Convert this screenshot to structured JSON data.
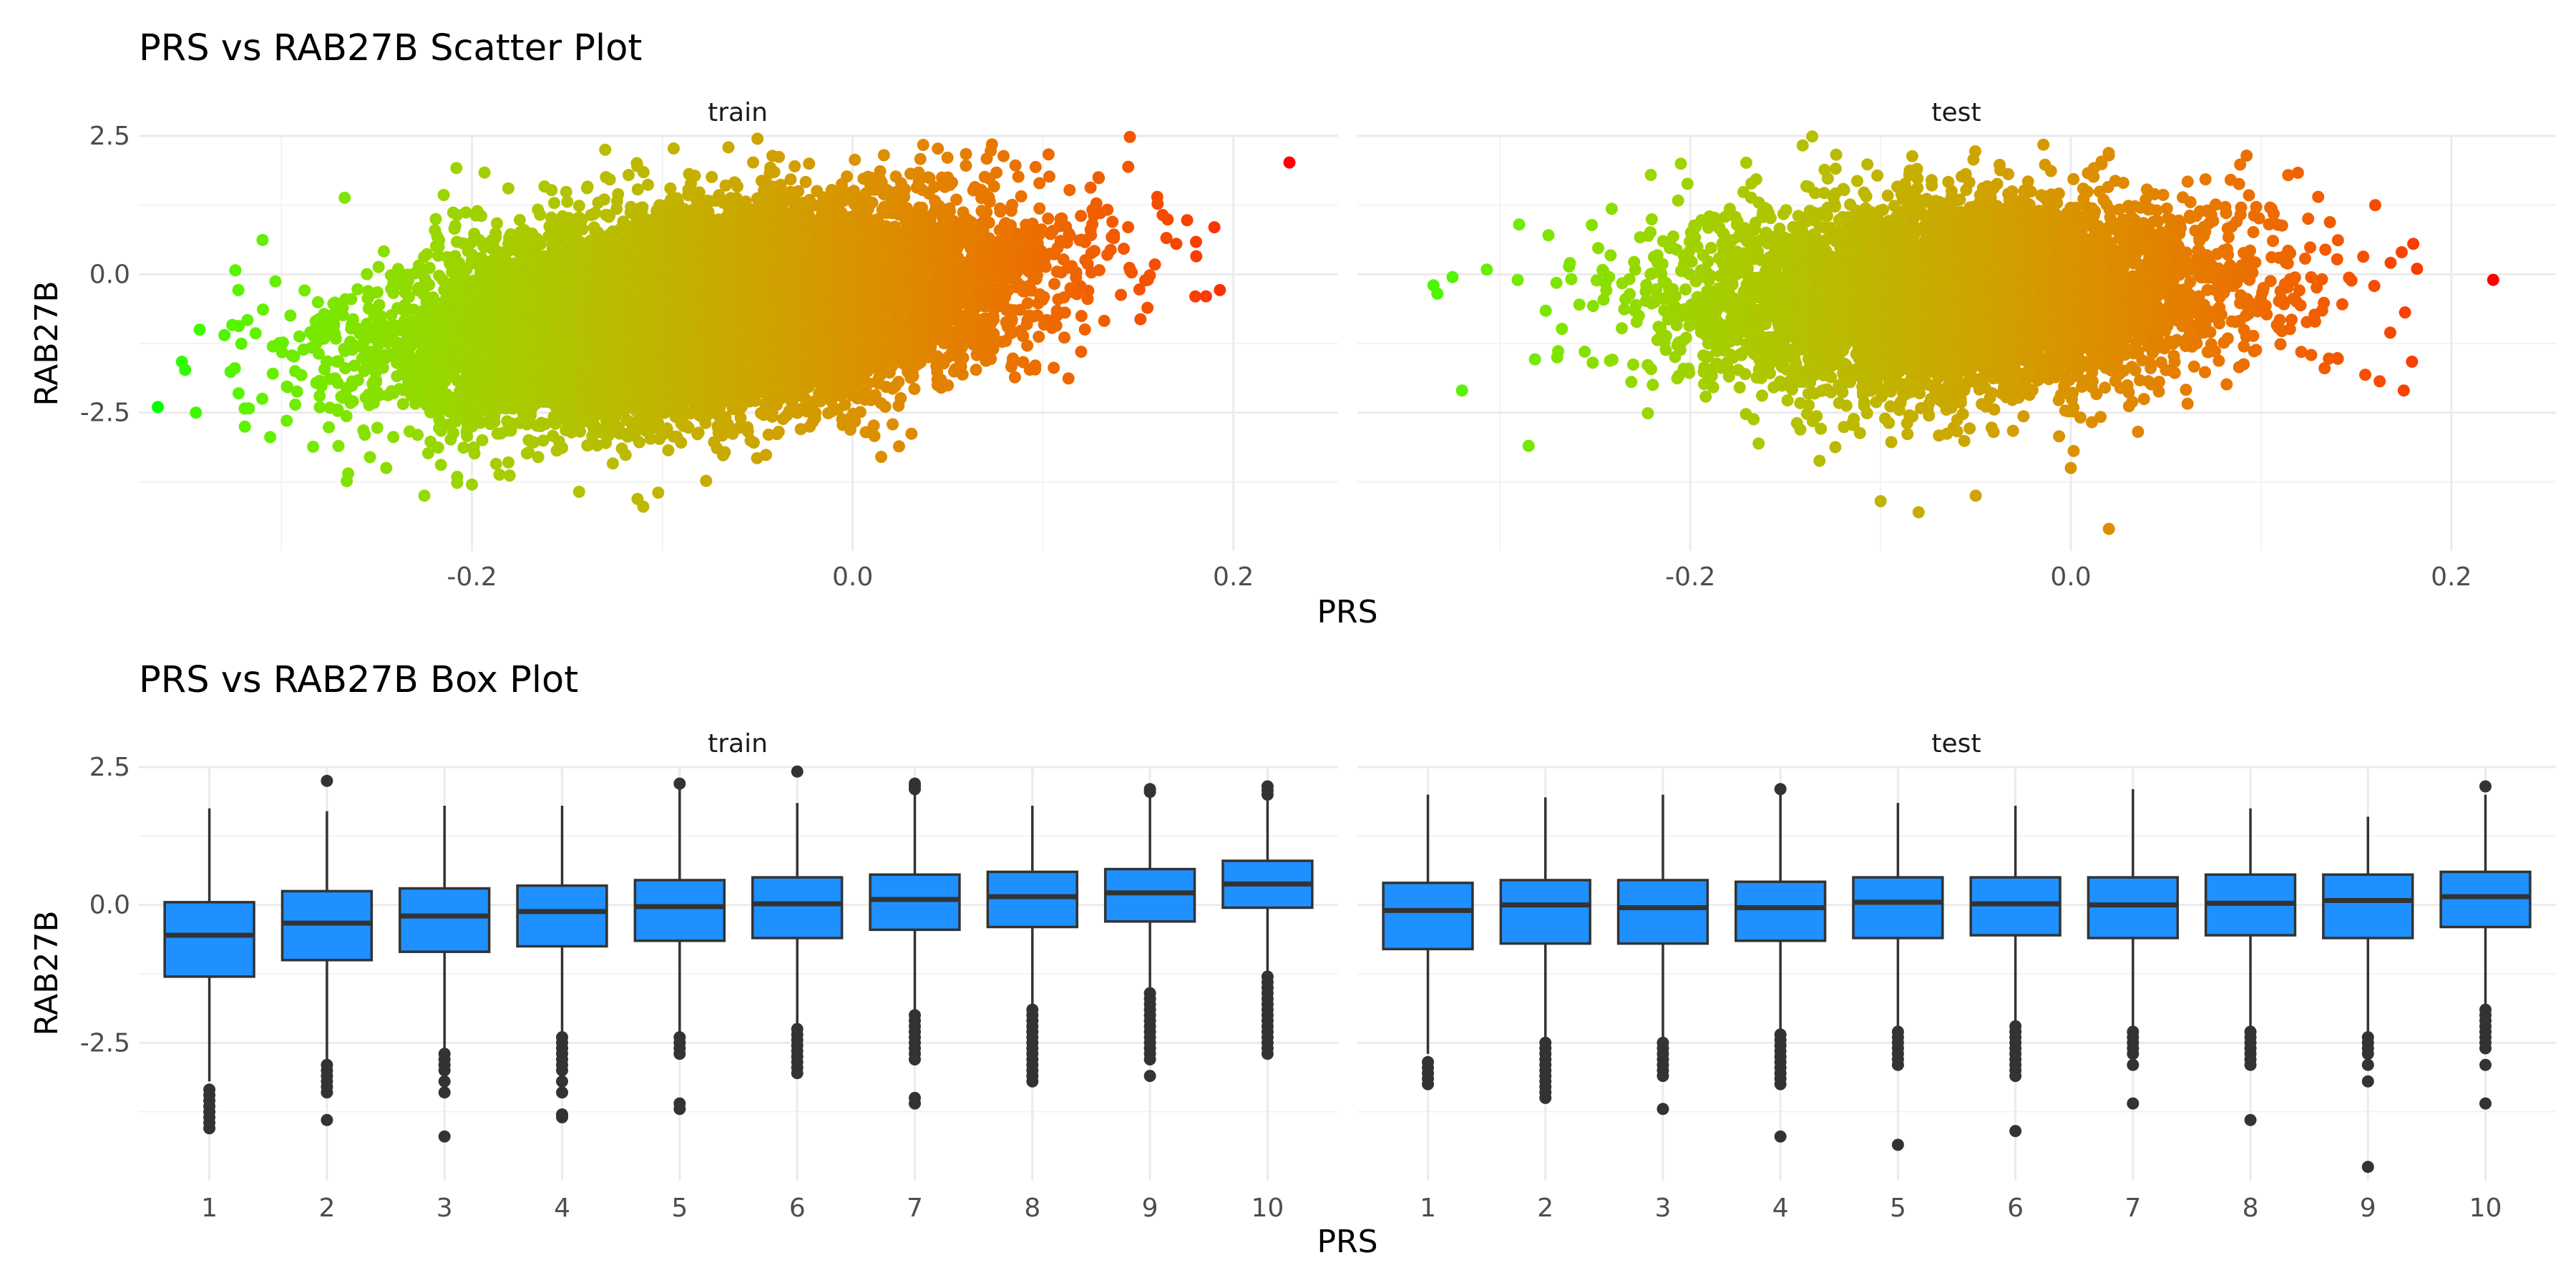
{
  "chart_data": [
    {
      "type": "scatter",
      "title": "PRS vs RAB27B Scatter Plot",
      "xlabel": "PRS",
      "ylabel": "RAB27B",
      "facets": [
        "train",
        "test"
      ],
      "xlim": [
        -0.375,
        0.255
      ],
      "ylim": [
        -5.0,
        2.5
      ],
      "x_ticks": [
        -0.2,
        0.0,
        0.2
      ],
      "x_tick_labels": [
        "-0.2",
        "0.0",
        "0.2"
      ],
      "y_ticks": [
        2.5,
        0.0,
        -2.5
      ],
      "y_tick_labels": [
        "2.5",
        "0.0",
        "-2.5"
      ],
      "color_scale": {
        "low": "#00ff00",
        "high": "#ff0000",
        "mapped_to": "PRS"
      },
      "panels": [
        {
          "facet": "train",
          "x_center": -0.08,
          "x_sd": 0.075,
          "y_center": -0.65,
          "y_sd": 0.85,
          "slope": 4.5,
          "n_approx": 12000,
          "extreme_points": [
            {
              "x": -0.365,
              "y": -2.4
            },
            {
              "x": -0.345,
              "y": -2.5
            },
            {
              "x": -0.343,
              "y": -1.0
            },
            {
              "x": -0.33,
              "y": -1.1
            },
            {
              "x": -0.31,
              "y": 0.62
            },
            {
              "x": -0.28,
              "y": -2.2
            },
            {
              "x": -0.265,
              "y": -3.6
            },
            {
              "x": -0.245,
              "y": -3.5
            },
            {
              "x": -0.225,
              "y": -4.0
            },
            {
              "x": -0.2,
              "y": -3.8
            },
            {
              "x": -0.13,
              "y": 2.25
            },
            {
              "x": -0.11,
              "y": -4.2
            },
            {
              "x": -0.05,
              "y": 2.45
            },
            {
              "x": 0.015,
              "y": -3.3
            },
            {
              "x": 0.05,
              "y": 1.75
            },
            {
              "x": 0.12,
              "y": -1.4
            },
            {
              "x": 0.16,
              "y": 1.4
            },
            {
              "x": 0.18,
              "y": -0.4
            },
            {
              "x": 0.19,
              "y": 0.85
            },
            {
              "x": 0.17,
              "y": 0.55
            },
            {
              "x": 0.155,
              "y": -0.1
            }
          ]
        },
        {
          "facet": "test",
          "x_center": -0.06,
          "x_sd": 0.07,
          "y_center": -0.4,
          "y_sd": 0.85,
          "slope": 0.8,
          "n_approx": 5500,
          "extreme_points": [
            {
              "x": -0.335,
              "y": -0.2
            },
            {
              "x": -0.333,
              "y": -0.35
            },
            {
              "x": -0.325,
              "y": -0.05
            },
            {
              "x": -0.32,
              "y": -2.1
            },
            {
              "x": -0.285,
              "y": -3.1
            },
            {
              "x": -0.29,
              "y": 0.9
            },
            {
              "x": -0.27,
              "y": -1.5
            },
            {
              "x": -0.205,
              "y": 2.0
            },
            {
              "x": -0.1,
              "y": -4.1
            },
            {
              "x": -0.08,
              "y": -4.3
            },
            {
              "x": -0.05,
              "y": -4.0
            },
            {
              "x": 0.0,
              "y": -3.5
            },
            {
              "x": 0.02,
              "y": -4.6
            },
            {
              "x": 0.02,
              "y": 2.15
            },
            {
              "x": 0.13,
              "y": 1.4
            },
            {
              "x": 0.16,
              "y": 1.25
            },
            {
              "x": 0.175,
              "y": -2.1
            },
            {
              "x": 0.18,
              "y": 0.55
            },
            {
              "x": 0.182,
              "y": 0.1
            },
            {
              "x": 0.222,
              "y": -0.1
            }
          ]
        }
      ]
    },
    {
      "type": "box",
      "title": "PRS vs RAB27B Box Plot",
      "xlabel": "PRS",
      "ylabel": "RAB27B",
      "facets": [
        "train",
        "test"
      ],
      "categories": [
        "1",
        "2",
        "3",
        "4",
        "5",
        "6",
        "7",
        "8",
        "9",
        "10"
      ],
      "ylim": [
        -5.0,
        2.5
      ],
      "y_ticks": [
        2.5,
        0.0,
        -2.5
      ],
      "y_tick_labels": [
        "2.5",
        "0.0",
        "-2.5"
      ],
      "fill": "#1e90ff",
      "panels": [
        {
          "facet": "train",
          "boxes": [
            {
              "category": "1",
              "whisker_low": -3.2,
              "q1": -1.3,
              "median": -0.55,
              "q3": 0.05,
              "whisker_high": 1.75,
              "outliers": [
                -3.35,
                -3.45,
                -3.55,
                -3.65,
                -3.75,
                -3.85,
                -3.95,
                -4.05
              ]
            },
            {
              "category": "2",
              "whisker_low": -2.8,
              "q1": -1.0,
              "median": -0.33,
              "q3": 0.25,
              "whisker_high": 1.7,
              "outliers": [
                2.25,
                -2.9,
                -3.0,
                -3.1,
                -3.2,
                -3.3,
                -3.4,
                -3.9
              ]
            },
            {
              "category": "3",
              "whisker_low": -2.65,
              "q1": -0.85,
              "median": -0.2,
              "q3": 0.3,
              "whisker_high": 1.8,
              "outliers": [
                -2.7,
                -2.8,
                -2.9,
                -3.0,
                -3.2,
                -3.4,
                -4.2
              ]
            },
            {
              "category": "4",
              "whisker_low": -2.3,
              "q1": -0.75,
              "median": -0.12,
              "q3": 0.35,
              "whisker_high": 1.8,
              "outliers": [
                -2.4,
                -2.5,
                -2.6,
                -2.7,
                -2.8,
                -2.9,
                -3.0,
                -3.2,
                -3.4,
                -3.8,
                -3.85
              ]
            },
            {
              "category": "5",
              "whisker_low": -2.3,
              "q1": -0.65,
              "median": -0.03,
              "q3": 0.45,
              "whisker_high": 2.1,
              "outliers": [
                2.2,
                -2.4,
                -2.5,
                -2.6,
                -2.7,
                -3.6,
                -3.7
              ]
            },
            {
              "category": "6",
              "whisker_low": -2.15,
              "q1": -0.6,
              "median": 0.02,
              "q3": 0.5,
              "whisker_high": 1.85,
              "outliers": [
                2.42,
                -2.25,
                -2.35,
                -2.45,
                -2.55,
                -2.65,
                -2.75,
                -2.85,
                -2.95,
                -3.05
              ]
            },
            {
              "category": "7",
              "whisker_low": -1.9,
              "q1": -0.45,
              "median": 0.1,
              "q3": 0.55,
              "whisker_high": 2.05,
              "outliers": [
                2.1,
                2.15,
                2.2,
                -2.0,
                -2.1,
                -2.2,
                -2.3,
                -2.4,
                -2.5,
                -2.6,
                -2.7,
                -2.8,
                -3.5,
                -3.6
              ]
            },
            {
              "category": "8",
              "whisker_low": -1.8,
              "q1": -0.4,
              "median": 0.15,
              "q3": 0.6,
              "whisker_high": 1.8,
              "outliers": [
                -1.9,
                -2.0,
                -2.1,
                -2.2,
                -2.3,
                -2.4,
                -2.5,
                -2.6,
                -2.7,
                -2.8,
                -2.9,
                -3.0,
                -3.1,
                -3.2
              ]
            },
            {
              "category": "9",
              "whisker_low": -1.5,
              "q1": -0.3,
              "median": 0.22,
              "q3": 0.65,
              "whisker_high": 1.95,
              "outliers": [
                2.05,
                2.1,
                -1.6,
                -1.7,
                -1.8,
                -1.9,
                -2.0,
                -2.1,
                -2.2,
                -2.3,
                -2.4,
                -2.5,
                -2.6,
                -2.7,
                -2.8,
                -3.1
              ]
            },
            {
              "category": "10",
              "whisker_low": -1.2,
              "q1": -0.05,
              "median": 0.38,
              "q3": 0.8,
              "whisker_high": 1.95,
              "outliers": [
                2.0,
                2.08,
                2.15,
                -1.3,
                -1.4,
                -1.5,
                -1.6,
                -1.7,
                -1.8,
                -1.9,
                -2.0,
                -2.1,
                -2.2,
                -2.3,
                -2.4,
                -2.5,
                -2.6,
                -2.7
              ]
            }
          ]
        },
        {
          "facet": "test",
          "boxes": [
            {
              "category": "1",
              "whisker_low": -2.7,
              "q1": -0.8,
              "median": -0.1,
              "q3": 0.4,
              "whisker_high": 2.0,
              "outliers": [
                -2.85,
                -2.95,
                -3.05,
                -3.15,
                -3.25
              ]
            },
            {
              "category": "2",
              "whisker_low": -2.4,
              "q1": -0.7,
              "median": 0.0,
              "q3": 0.45,
              "whisker_high": 1.95,
              "outliers": [
                -2.5,
                -2.6,
                -2.7,
                -2.8,
                -2.9,
                -3.0,
                -3.1,
                -3.2,
                -3.3,
                -3.4,
                -3.5
              ]
            },
            {
              "category": "3",
              "whisker_low": -2.4,
              "q1": -0.7,
              "median": -0.05,
              "q3": 0.45,
              "whisker_high": 2.0,
              "outliers": [
                -2.5,
                -2.6,
                -2.7,
                -2.8,
                -2.9,
                -3.0,
                -3.1,
                -3.7
              ]
            },
            {
              "category": "4",
              "whisker_low": -2.25,
              "q1": -0.65,
              "median": -0.05,
              "q3": 0.42,
              "whisker_high": 2.0,
              "outliers": [
                2.1,
                -2.35,
                -2.45,
                -2.55,
                -2.65,
                -2.75,
                -2.85,
                -2.95,
                -3.05,
                -3.15,
                -3.25,
                -4.2
              ]
            },
            {
              "category": "5",
              "whisker_low": -2.2,
              "q1": -0.6,
              "median": 0.05,
              "q3": 0.5,
              "whisker_high": 1.85,
              "outliers": [
                -2.3,
                -2.4,
                -2.5,
                -2.6,
                -2.7,
                -2.8,
                -2.9,
                -4.35
              ]
            },
            {
              "category": "6",
              "whisker_low": -2.1,
              "q1": -0.55,
              "median": 0.02,
              "q3": 0.5,
              "whisker_high": 1.8,
              "outliers": [
                -2.2,
                -2.3,
                -2.4,
                -2.5,
                -2.6,
                -2.7,
                -2.8,
                -2.9,
                -3.0,
                -3.1,
                -4.1
              ]
            },
            {
              "category": "7",
              "whisker_low": -2.2,
              "q1": -0.6,
              "median": 0.0,
              "q3": 0.5,
              "whisker_high": 2.1,
              "outliers": [
                -2.3,
                -2.4,
                -2.5,
                -2.6,
                -2.7,
                -2.9,
                -3.6
              ]
            },
            {
              "category": "8",
              "whisker_low": -2.2,
              "q1": -0.55,
              "median": 0.03,
              "q3": 0.55,
              "whisker_high": 1.75,
              "outliers": [
                -2.3,
                -2.4,
                -2.5,
                -2.6,
                -2.7,
                -2.8,
                -2.9,
                -3.9
              ]
            },
            {
              "category": "9",
              "whisker_low": -2.3,
              "q1": -0.6,
              "median": 0.08,
              "q3": 0.55,
              "whisker_high": 1.6,
              "outliers": [
                -2.4,
                -2.5,
                -2.6,
                -2.7,
                -2.9,
                -3.2,
                -4.75
              ]
            },
            {
              "category": "10",
              "whisker_low": -1.8,
              "q1": -0.4,
              "median": 0.15,
              "q3": 0.6,
              "whisker_high": 2.0,
              "outliers": [
                2.15,
                -1.9,
                -2.0,
                -2.1,
                -2.2,
                -2.3,
                -2.4,
                -2.5,
                -2.6,
                -2.9,
                -3.6
              ]
            }
          ]
        }
      ]
    }
  ]
}
